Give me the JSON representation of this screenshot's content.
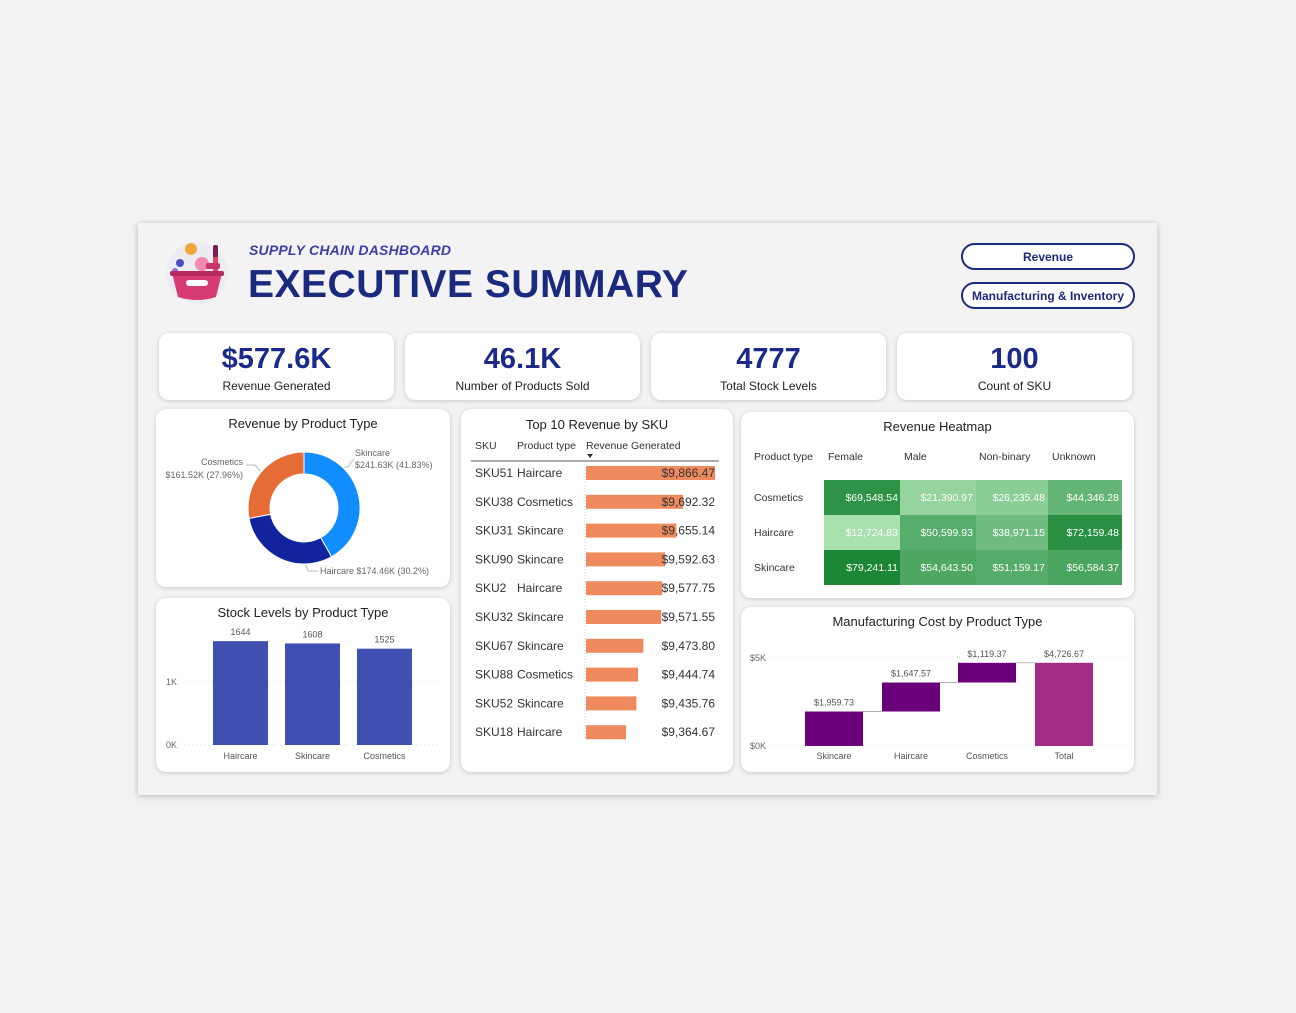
{
  "header": {
    "subtitle": "SUPPLY CHAIN DASHBOARD",
    "title": "EXECUTIVE SUMMARY"
  },
  "nav": {
    "revenue_label": "Revenue",
    "manufacturing_label": "Manufacturing & Inventory"
  },
  "kpis": [
    {
      "value": "$577.6K",
      "label": "Revenue Generated"
    },
    {
      "value": "46.1K",
      "label": "Number of Products Sold"
    },
    {
      "value": "4777",
      "label": "Total Stock Levels"
    },
    {
      "value": "100",
      "label": "Count of SKU"
    }
  ],
  "colors": {
    "accent": "#1b2a7e",
    "skincare": "#118dff",
    "haircare": "#12239e",
    "cosmetics": "#e66c37",
    "bar": "#414fb1",
    "sku_bar": "#ee8a5e",
    "waterfall": "#6b007b",
    "waterfall_total": "#a12d85"
  },
  "chart_data": [
    {
      "type": "pie",
      "title": "Revenue by Product Type",
      "slices": [
        {
          "name": "Skincare",
          "value": 241.63,
          "label": "$241.63K (41.83%)"
        },
        {
          "name": "Haircare",
          "value": 174.46,
          "label": "$174.46K (30.2%)"
        },
        {
          "name": "Cosmetics",
          "value": 161.52,
          "label": "$161.52K (27.96%)"
        }
      ]
    },
    {
      "type": "bar",
      "title": "Stock Levels by Product Type",
      "categories": [
        "Haircare",
        "Skincare",
        "Cosmetics"
      ],
      "values": [
        1644,
        1608,
        1525
      ],
      "yticks": [
        "0K",
        "1K"
      ],
      "ylim": [
        0,
        1900
      ]
    },
    {
      "type": "table",
      "title": "Top 10 Revenue by SKU",
      "columns": [
        "SKU",
        "Product type",
        "Revenue Generated"
      ],
      "rows": [
        {
          "sku": "SKU51",
          "type": "Haircare",
          "value": 9866.47,
          "label": "$9,866.47"
        },
        {
          "sku": "SKU38",
          "type": "Cosmetics",
          "value": 9692.32,
          "label": "$9,692.32"
        },
        {
          "sku": "SKU31",
          "type": "Skincare",
          "value": 9655.14,
          "label": "$9,655.14"
        },
        {
          "sku": "SKU90",
          "type": "Skincare",
          "value": 9592.63,
          "label": "$9,592.63"
        },
        {
          "sku": "SKU2",
          "type": "Haircare",
          "value": 9577.75,
          "label": "$9,577.75"
        },
        {
          "sku": "SKU32",
          "type": "Skincare",
          "value": 9571.55,
          "label": "$9,571.55"
        },
        {
          "sku": "SKU67",
          "type": "Skincare",
          "value": 9473.8,
          "label": "$9,473.80"
        },
        {
          "sku": "SKU88",
          "type": "Cosmetics",
          "value": 9444.74,
          "label": "$9,444.74"
        },
        {
          "sku": "SKU52",
          "type": "Skincare",
          "value": 9435.76,
          "label": "$9,435.76"
        },
        {
          "sku": "SKU18",
          "type": "Haircare",
          "value": 9364.67,
          "label": "$9,364.67"
        }
      ]
    },
    {
      "type": "heatmap",
      "title": "Revenue Heatmap",
      "corner": "Product type",
      "columns": [
        "Female",
        "Male",
        "Non-binary",
        "Unknown"
      ],
      "rows": [
        {
          "name": "Cosmetics",
          "values": [
            69548.54,
            21390.97,
            26235.48,
            44346.28
          ],
          "labels": [
            "$69,548.54",
            "$21,390.97",
            "$26,235.48",
            "$44,346.28"
          ]
        },
        {
          "name": "Haircare",
          "values": [
            12724.83,
            50599.93,
            38971.15,
            72159.48
          ],
          "labels": [
            "$12,724.83",
            "$50,599.93",
            "$38,971.15",
            "$72,159.48"
          ]
        },
        {
          "name": "Skincare",
          "values": [
            79241.11,
            54643.5,
            51159.17,
            56584.37
          ],
          "labels": [
            "$79,241.11",
            "$54,643.50",
            "$51,159.17",
            "$56,584.37"
          ]
        }
      ]
    },
    {
      "type": "bar",
      "subtype": "waterfall",
      "title": "Manufacturing Cost by Product Type",
      "categories": [
        "Skincare",
        "Haircare",
        "Cosmetics",
        "Total"
      ],
      "values": [
        1959.73,
        1647.57,
        1119.37,
        4726.67
      ],
      "labels": [
        "$1,959.73",
        "$1,647.57",
        "$1,119.37",
        "$4,726.67"
      ],
      "yticks": [
        "$0K",
        "$5K"
      ],
      "ylim": [
        0,
        5000
      ]
    }
  ]
}
